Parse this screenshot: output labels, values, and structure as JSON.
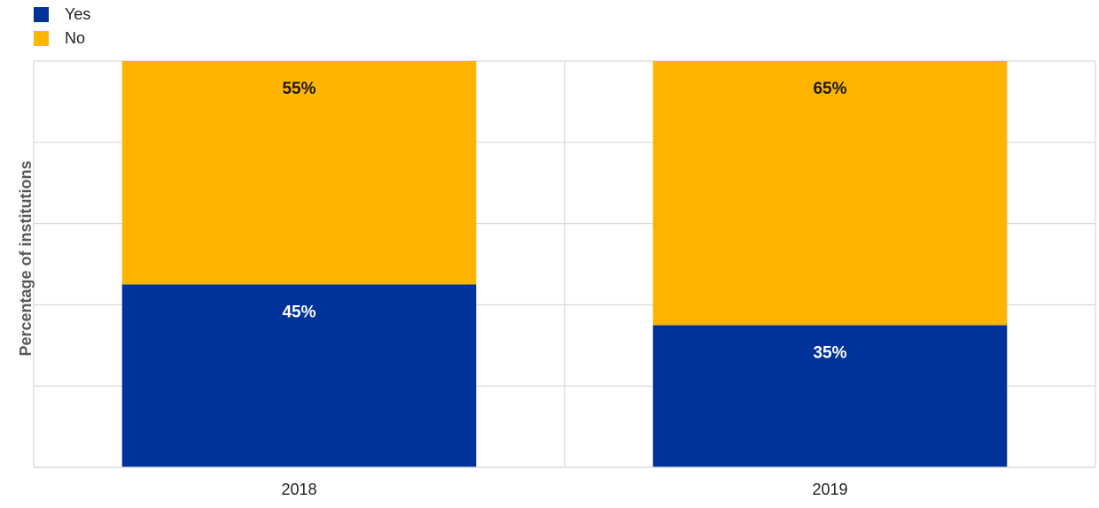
{
  "chart_data": {
    "type": "bar",
    "stacked": true,
    "categories": [
      "2018",
      "2019"
    ],
    "series": [
      {
        "name": "Yes",
        "values": [
          45,
          35
        ],
        "color": "#003399",
        "labels": [
          "45%",
          "35%"
        ]
      },
      {
        "name": "No",
        "values": [
          55,
          65
        ],
        "color": "#FFB400",
        "labels": [
          "55%",
          "65%"
        ]
      }
    ],
    "ylabel": "Percentage of institutions",
    "ylim": [
      0,
      100
    ],
    "grid": true,
    "legend_position": "top-left"
  }
}
